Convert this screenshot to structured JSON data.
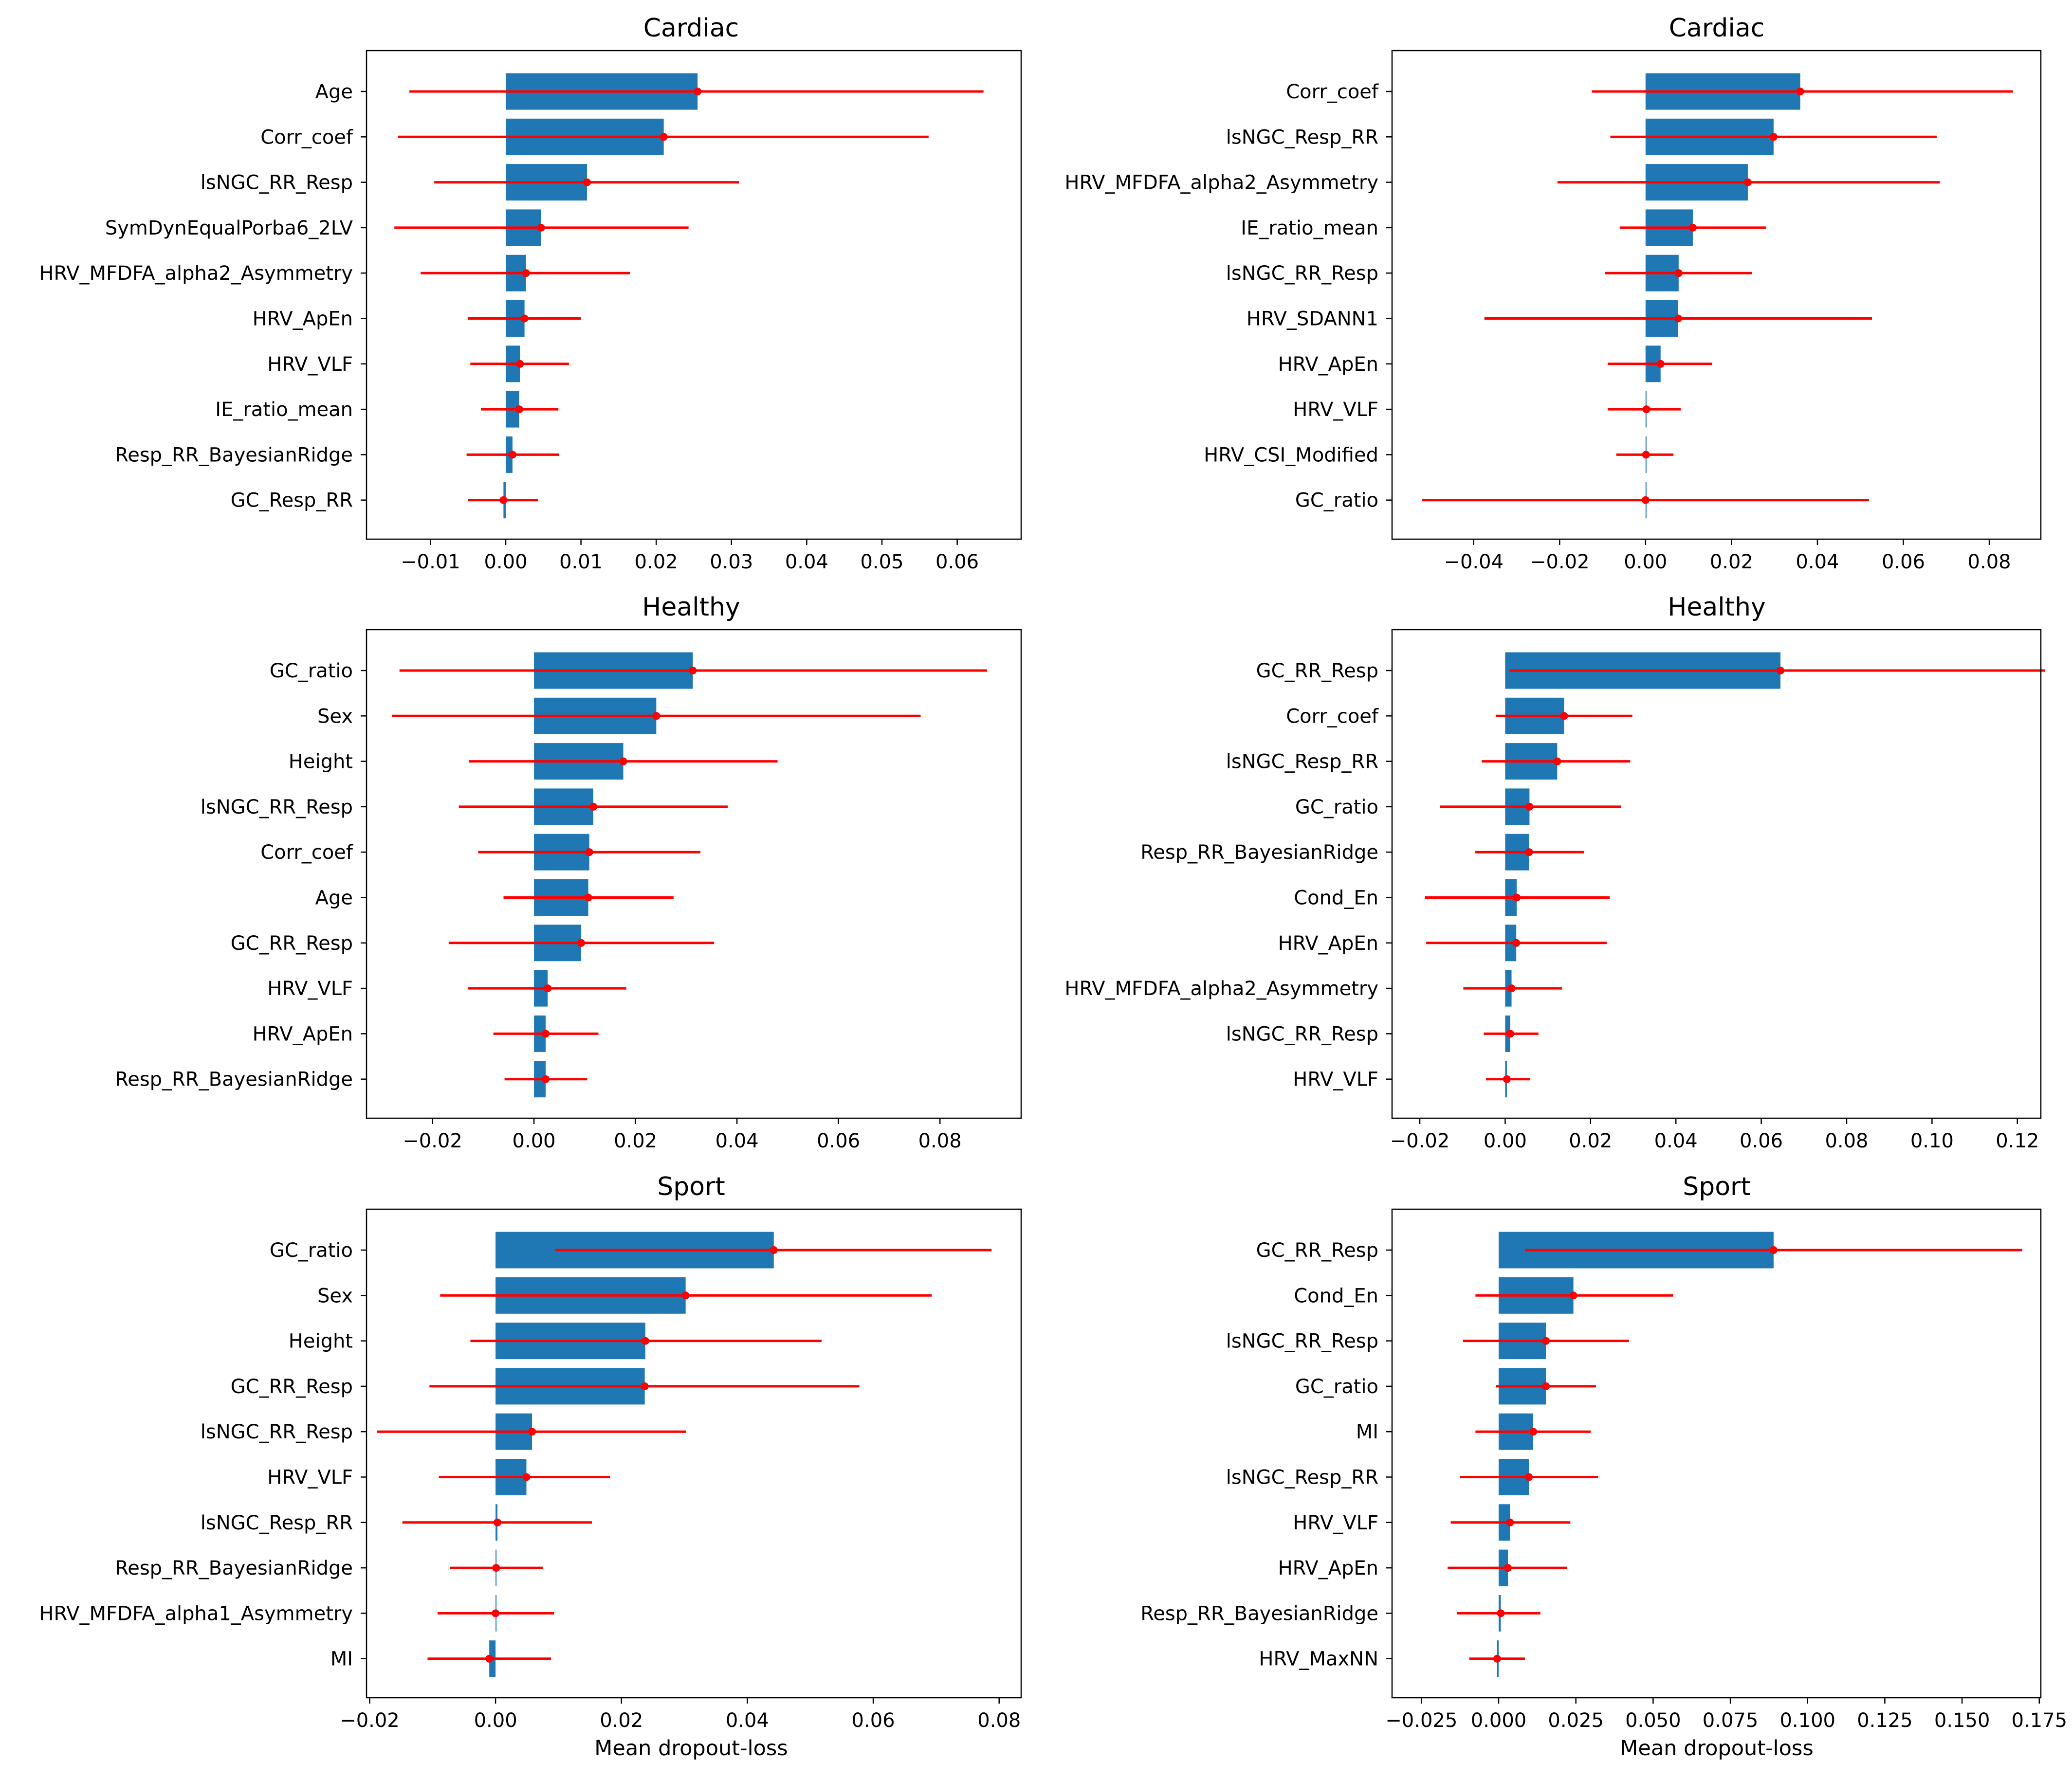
{
  "figure": {
    "bar_color": "#1f77b4",
    "error_color": "#ff0000",
    "axis_color": "#000000"
  },
  "chart_data": [
    {
      "type": "bar",
      "orientation": "horizontal",
      "title": "Cardiac",
      "xlabel": "",
      "xlim": [
        -0.0185,
        0.0685
      ],
      "xticks": [
        -0.01,
        0.0,
        0.01,
        0.02,
        0.03,
        0.04,
        0.05,
        0.06
      ],
      "xtick_labels": [
        "−0.01",
        "0.00",
        "0.01",
        "0.02",
        "0.03",
        "0.04",
        "0.05",
        "0.06"
      ],
      "categories": [
        "Age",
        "Corr_coef",
        "lsNGC_RR_Resp",
        "SymDynEqualPorba6_2LV",
        "HRV_MFDFA_alpha2_Asymmetry",
        "HRV_ApEn",
        "HRV_VLF",
        "IE_ratio_mean",
        "Resp_RR_BayesianRidge",
        "GC_Resp_RR"
      ],
      "values": [
        0.0255,
        0.021,
        0.0108,
        0.0047,
        0.0027,
        0.0025,
        0.0019,
        0.0018,
        0.0009,
        -0.0003
      ],
      "err_low": [
        -0.0128,
        -0.0143,
        -0.0095,
        -0.0148,
        -0.0113,
        -0.005,
        -0.0047,
        -0.0033,
        -0.0052,
        -0.005
      ],
      "err_high": [
        0.0635,
        0.0562,
        0.031,
        0.0243,
        0.0165,
        0.01,
        0.0084,
        0.007,
        0.0071,
        0.0043
      ]
    },
    {
      "type": "bar",
      "orientation": "horizontal",
      "title": "Cardiac",
      "xlabel": "",
      "xlim": [
        -0.059,
        0.092
      ],
      "xticks": [
        -0.04,
        -0.02,
        0.0,
        0.02,
        0.04,
        0.06,
        0.08
      ],
      "xtick_labels": [
        "−0.04",
        "−0.02",
        "0.00",
        "0.02",
        "0.04",
        "0.06",
        "0.08"
      ],
      "categories": [
        "Corr_coef",
        "lsNGC_Resp_RR",
        "HRV_MFDFA_alpha2_Asymmetry",
        "IE_ratio_mean",
        "lsNGC_RR_Resp",
        "HRV_SDANN1",
        "HRV_ApEn",
        "HRV_VLF",
        "HRV_CSI_Modified",
        "GC_ratio"
      ],
      "values": [
        0.036,
        0.0298,
        0.0238,
        0.011,
        0.0077,
        0.0076,
        0.0035,
        0.0002,
        0.0001,
        0.0
      ],
      "err_low": [
        -0.0125,
        -0.0082,
        -0.0205,
        -0.006,
        -0.0095,
        -0.0375,
        -0.0088,
        -0.0088,
        -0.0068,
        -0.052
      ],
      "err_high": [
        0.0855,
        0.0678,
        0.0685,
        0.028,
        0.0248,
        0.0527,
        0.0155,
        0.0082,
        0.0065,
        0.052
      ]
    },
    {
      "type": "bar",
      "orientation": "horizontal",
      "title": "Healthy",
      "xlabel": "",
      "xlim": [
        -0.033,
        0.096
      ],
      "xticks": [
        -0.02,
        0.0,
        0.02,
        0.04,
        0.06,
        0.08
      ],
      "xtick_labels": [
        "−0.02",
        "0.00",
        "0.02",
        "0.04",
        "0.06",
        "0.08"
      ],
      "categories": [
        "GC_ratio",
        "Sex",
        "Height",
        "lsNGC_RR_Resp",
        "Corr_coef",
        "Age",
        "GC_RR_Resp",
        "HRV_VLF",
        "HRV_ApEn",
        "Resp_RR_BayesianRidge"
      ],
      "values": [
        0.0313,
        0.0241,
        0.0176,
        0.0117,
        0.0109,
        0.0107,
        0.0093,
        0.0027,
        0.0023,
        0.0023
      ],
      "err_low": [
        -0.0265,
        -0.028,
        -0.0128,
        -0.0148,
        -0.011,
        -0.006,
        -0.0168,
        -0.013,
        -0.008,
        -0.0058
      ],
      "err_high": [
        0.0893,
        0.0762,
        0.048,
        0.0382,
        0.0328,
        0.0275,
        0.0355,
        0.0182,
        0.0127,
        0.0105
      ]
    },
    {
      "type": "bar",
      "orientation": "horizontal",
      "title": "Healthy",
      "xlabel": "",
      "xlim": [
        -0.0265,
        0.1255
      ],
      "xticks": [
        -0.02,
        0.0,
        0.02,
        0.04,
        0.06,
        0.08,
        0.1,
        0.12
      ],
      "xtick_labels": [
        "−0.02",
        "0.00",
        "0.02",
        "0.04",
        "0.06",
        "0.08",
        "0.10",
        "0.12"
      ],
      "categories": [
        "GC_RR_Resp",
        "Corr_coef",
        "lsNGC_Resp_RR",
        "GC_ratio",
        "Resp_RR_BayesianRidge",
        "Cond_En",
        "HRV_ApEn",
        "HRV_MFDFA_alpha2_Asymmetry",
        "lsNGC_RR_Resp",
        "HRV_VLF"
      ],
      "values": [
        0.0645,
        0.0138,
        0.0122,
        0.0057,
        0.0056,
        0.0027,
        0.0026,
        0.0015,
        0.0012,
        0.0004
      ],
      "err_low": [
        0.001,
        -0.0022,
        -0.0055,
        -0.0153,
        -0.007,
        -0.0188,
        -0.0185,
        -0.0098,
        -0.005,
        -0.0045
      ],
      "err_high": [
        0.1265,
        0.0298,
        0.0293,
        0.0272,
        0.0185,
        0.0245,
        0.0238,
        0.0133,
        0.0078,
        0.0058
      ]
    },
    {
      "type": "bar",
      "orientation": "horizontal",
      "title": "Sport",
      "xlabel": "Mean dropout-loss",
      "xlim": [
        -0.0205,
        0.0835
      ],
      "xticks": [
        -0.02,
        0.0,
        0.02,
        0.04,
        0.06,
        0.08
      ],
      "xtick_labels": [
        "−0.02",
        "0.00",
        "0.02",
        "0.04",
        "0.06",
        "0.08"
      ],
      "categories": [
        "GC_ratio",
        "Sex",
        "Height",
        "GC_RR_Resp",
        "lsNGC_RR_Resp",
        "HRV_VLF",
        "lsNGC_Resp_RR",
        "Resp_RR_BayesianRidge",
        "HRV_MFDFA_alpha1_Asymmetry",
        "MI"
      ],
      "values": [
        0.0442,
        0.0302,
        0.0238,
        0.0237,
        0.0058,
        0.0049,
        0.0003,
        0.0001,
        0.0,
        -0.001
      ],
      "err_low": [
        0.0095,
        -0.0088,
        -0.004,
        -0.0105,
        -0.0188,
        -0.009,
        -0.0148,
        -0.0072,
        -0.0092,
        -0.0108
      ],
      "err_high": [
        0.0788,
        0.0693,
        0.0518,
        0.0578,
        0.0303,
        0.0182,
        0.0153,
        0.0075,
        0.0093,
        0.0088
      ]
    },
    {
      "type": "bar",
      "orientation": "horizontal",
      "title": "Sport",
      "xlabel": "Mean dropout-loss",
      "xlim": [
        -0.0345,
        0.1755
      ],
      "xticks": [
        -0.025,
        0.0,
        0.025,
        0.05,
        0.075,
        0.1,
        0.125,
        0.15,
        0.175
      ],
      "xtick_labels": [
        "−0.025",
        "0.000",
        "0.025",
        "0.050",
        "0.075",
        "0.100",
        "0.125",
        "0.150",
        "0.175"
      ],
      "categories": [
        "GC_RR_Resp",
        "Cond_En",
        "lsNGC_RR_Resp",
        "GC_ratio",
        "MI",
        "lsNGC_Resp_RR",
        "HRV_VLF",
        "HRV_ApEn",
        "Resp_RR_BayesianRidge",
        "HRV_MaxNN"
      ],
      "values": [
        0.089,
        0.0242,
        0.0153,
        0.0153,
        0.0112,
        0.0098,
        0.0037,
        0.003,
        0.0007,
        -0.0005
      ],
      "err_low": [
        0.0085,
        -0.0075,
        -0.0115,
        -0.0008,
        -0.0075,
        -0.0125,
        -0.0155,
        -0.0165,
        -0.0135,
        -0.0095
      ],
      "err_high": [
        0.1695,
        0.0565,
        0.0422,
        0.0315,
        0.0298,
        0.0322,
        0.0232,
        0.0222,
        0.0135,
        0.0085
      ]
    }
  ]
}
